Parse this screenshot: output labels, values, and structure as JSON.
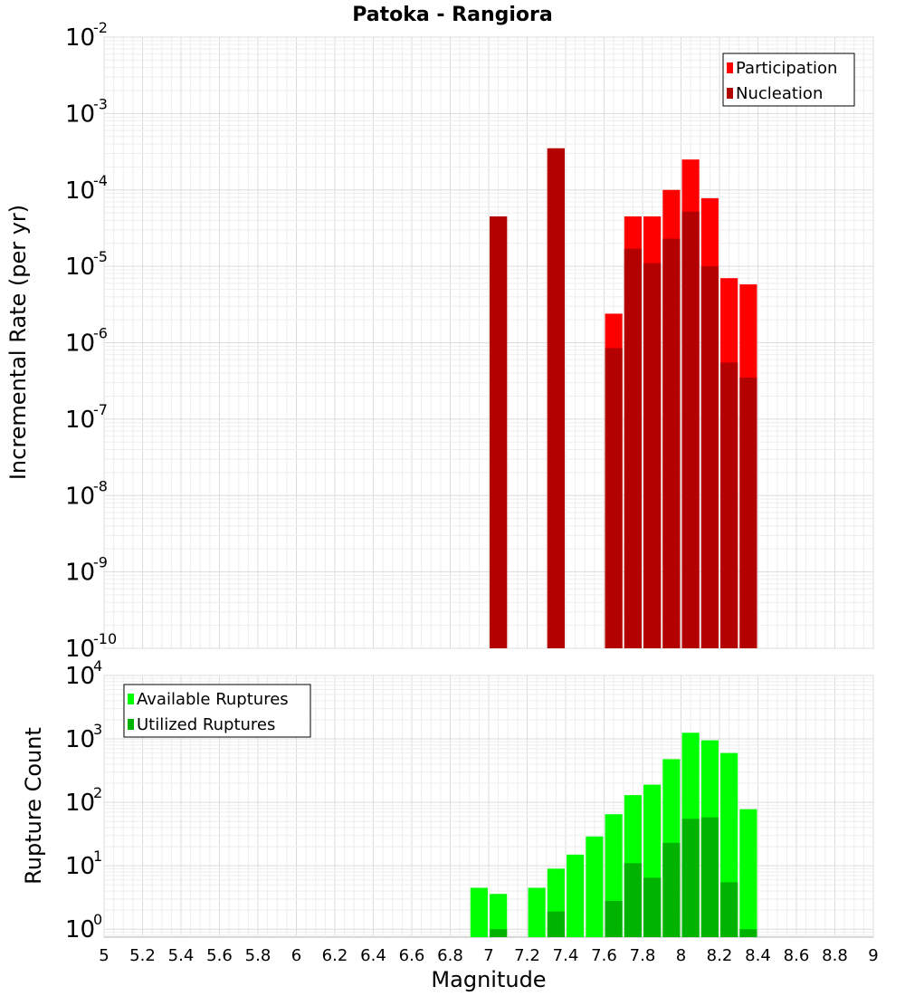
{
  "chart_data": [
    {
      "type": "bar",
      "title": "Patoka - Rangiora",
      "xlabel": "Magnitude",
      "ylabel": "Incremental Rate (per yr)",
      "xlim": [
        5,
        9
      ],
      "ylim": [
        1e-10,
        0.01
      ],
      "y_scale": "log",
      "grid": true,
      "bar_width": 0.09,
      "legend_position": "top-right",
      "y_ticks": [
        "10^-10",
        "10^-9",
        "10^-8",
        "10^-7",
        "10^-6",
        "10^-5",
        "10^-4",
        "10^-3",
        "10^-2"
      ],
      "series": [
        {
          "name": "Participation",
          "color": "#ff0000",
          "x": [
            7.05,
            7.35,
            7.65,
            7.75,
            7.85,
            7.95,
            8.05,
            8.15,
            8.25,
            8.35
          ],
          "values": [
            4.5e-05,
            0.00035,
            2.4e-06,
            4.5e-05,
            4.5e-05,
            0.0001,
            0.00025,
            7.8e-05,
            7e-06,
            5.8e-06
          ]
        },
        {
          "name": "Nucleation",
          "color": "#b30000",
          "x": [
            7.05,
            7.35,
            7.65,
            7.75,
            7.85,
            7.95,
            8.05,
            8.15,
            8.25,
            8.35
          ],
          "values": [
            4.5e-05,
            0.00035,
            8.5e-07,
            1.7e-05,
            1.1e-05,
            2.3e-05,
            5.2e-05,
            1e-05,
            5.5e-07,
            3.5e-07
          ]
        }
      ]
    },
    {
      "type": "bar",
      "xlabel": "Magnitude",
      "ylabel": "Rupture Count",
      "xlim": [
        5,
        9
      ],
      "ylim": [
        0.75,
        10000
      ],
      "y_scale": "log",
      "grid": true,
      "bar_width": 0.09,
      "legend_position": "top-left",
      "x_ticks": [
        "5",
        "5.2",
        "5.4",
        "5.6",
        "5.8",
        "6",
        "6.2",
        "6.4",
        "6.6",
        "6.8",
        "7",
        "7.2",
        "7.4",
        "7.6",
        "7.8",
        "8",
        "8.2",
        "8.4",
        "8.6",
        "8.8",
        "9"
      ],
      "y_ticks": [
        "10^0",
        "10^1",
        "10^2",
        "10^3",
        "10^4"
      ],
      "series": [
        {
          "name": "Available Ruptures",
          "color": "#00ff00",
          "x": [
            6.95,
            7.05,
            7.25,
            7.35,
            7.45,
            7.55,
            7.65,
            7.75,
            7.85,
            7.95,
            8.05,
            8.15,
            8.25,
            8.35
          ],
          "values": [
            4.5,
            3.6,
            4.5,
            9,
            15,
            29,
            65,
            130,
            190,
            480,
            1250,
            950,
            600,
            78
          ]
        },
        {
          "name": "Utilized Ruptures",
          "color": "#00b300",
          "x": [
            7.05,
            7.35,
            7.65,
            7.75,
            7.85,
            7.95,
            8.05,
            8.15,
            8.25,
            8.35
          ],
          "values": [
            1,
            1.9,
            2.8,
            11,
            6.5,
            23,
            55,
            58,
            5.5,
            1
          ]
        }
      ]
    }
  ]
}
